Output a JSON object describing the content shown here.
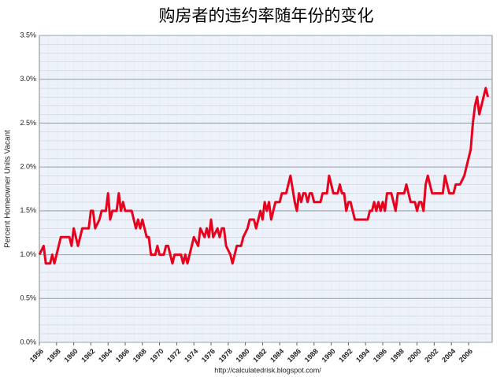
{
  "chart_data": {
    "type": "line",
    "title": "购房者的违约率随年份的变化",
    "y_label": "Percent Homeowner Units Vacant",
    "source": "http://calculatedrisk.blogspot.com/",
    "color": "#e8001c",
    "grid": true,
    "xlim": [
      1956,
      2008.75
    ],
    "xticks": [
      1956,
      1958,
      1960,
      1962,
      1964,
      1966,
      1968,
      1970,
      1972,
      1974,
      1976,
      1978,
      1980,
      1982,
      1984,
      1986,
      1988,
      1990,
      1992,
      1994,
      1996,
      1998,
      2000,
      2002,
      2004,
      2006
    ],
    "ylim": [
      0,
      3.5
    ],
    "yticks": [
      {
        "value": 0,
        "label": "0.0%"
      },
      {
        "value": 0.5,
        "label": "0.5%"
      },
      {
        "value": 1,
        "label": "1.0%"
      },
      {
        "value": 1.5,
        "label": "1.5%"
      },
      {
        "value": 2,
        "label": "2.0%"
      },
      {
        "value": 2.5,
        "label": "2.5%"
      },
      {
        "value": 3,
        "label": "3.0%"
      },
      {
        "value": 3.5,
        "label": "3.5%"
      }
    ],
    "x": [
      1956.0,
      1956.5,
      1956.75,
      1957.25,
      1957.5,
      1957.75,
      1958.25,
      1958.5,
      1959.5,
      1959.75,
      1960.0,
      1960.5,
      1961.0,
      1961.75,
      1962.0,
      1962.25,
      1962.5,
      1963.0,
      1963.25,
      1963.75,
      1964.0,
      1964.25,
      1964.5,
      1965.0,
      1965.25,
      1965.5,
      1965.75,
      1966.0,
      1966.75,
      1967.0,
      1967.25,
      1967.5,
      1967.75,
      1968.0,
      1968.5,
      1968.75,
      1969.0,
      1969.5,
      1969.75,
      1970.0,
      1970.5,
      1970.75,
      1971.0,
      1971.5,
      1971.75,
      1972.5,
      1972.75,
      1973.0,
      1973.25,
      1973.75,
      1974.0,
      1974.5,
      1974.75,
      1975.25,
      1975.5,
      1975.75,
      1976.0,
      1976.25,
      1976.75,
      1977.0,
      1977.25,
      1977.5,
      1977.75,
      1978.25,
      1978.5,
      1978.75,
      1979.0,
      1979.5,
      1979.75,
      1980.25,
      1980.5,
      1981.0,
      1981.25,
      1981.5,
      1981.75,
      1982.0,
      1982.25,
      1982.5,
      1982.75,
      1983.0,
      1983.5,
      1984.0,
      1984.25,
      1984.75,
      1985.25,
      1985.75,
      1986.0,
      1986.25,
      1986.5,
      1986.75,
      1987.0,
      1987.25,
      1987.5,
      1987.75,
      1988.0,
      1988.75,
      1989.0,
      1989.5,
      1989.75,
      1990.25,
      1990.75,
      1991.0,
      1991.25,
      1991.5,
      1991.75,
      1992.0,
      1992.25,
      1992.5,
      1992.75,
      1993.0,
      1994.25,
      1994.5,
      1994.75,
      1995.0,
      1995.25,
      1995.5,
      1995.75,
      1996.0,
      1996.25,
      1996.5,
      1997.0,
      1997.25,
      1997.5,
      1997.75,
      1998.0,
      1998.5,
      1998.75,
      1999.0,
      1999.25,
      1999.75,
      2000.0,
      2000.25,
      2000.5,
      2000.75,
      2001.0,
      2001.25,
      2001.5,
      2001.75,
      2002.0,
      2003.0,
      2003.25,
      2003.5,
      2003.75,
      2004.25,
      2004.5,
      2005.0,
      2005.5,
      2005.75,
      2006.0,
      2006.25,
      2006.5,
      2006.75,
      2007.0,
      2007.25,
      2007.5,
      2007.75,
      2008.0,
      2008.25
    ],
    "values": [
      1.0,
      1.1,
      0.9,
      0.9,
      1.0,
      0.9,
      1.1,
      1.2,
      1.2,
      1.1,
      1.3,
      1.1,
      1.3,
      1.3,
      1.5,
      1.5,
      1.3,
      1.4,
      1.5,
      1.5,
      1.7,
      1.4,
      1.5,
      1.5,
      1.7,
      1.5,
      1.6,
      1.5,
      1.5,
      1.4,
      1.3,
      1.4,
      1.3,
      1.4,
      1.2,
      1.2,
      1.0,
      1.0,
      1.1,
      1.0,
      1.0,
      1.1,
      1.1,
      0.9,
      1.0,
      1.0,
      0.9,
      1.0,
      0.9,
      1.1,
      1.2,
      1.1,
      1.3,
      1.2,
      1.3,
      1.2,
      1.4,
      1.2,
      1.3,
      1.2,
      1.3,
      1.3,
      1.1,
      1.0,
      0.9,
      1.0,
      1.1,
      1.1,
      1.2,
      1.3,
      1.4,
      1.4,
      1.3,
      1.4,
      1.5,
      1.4,
      1.6,
      1.5,
      1.6,
      1.4,
      1.6,
      1.6,
      1.7,
      1.7,
      1.9,
      1.6,
      1.5,
      1.7,
      1.6,
      1.7,
      1.7,
      1.6,
      1.7,
      1.7,
      1.6,
      1.6,
      1.7,
      1.7,
      1.9,
      1.7,
      1.7,
      1.8,
      1.7,
      1.7,
      1.5,
      1.6,
      1.6,
      1.5,
      1.4,
      1.4,
      1.4,
      1.5,
      1.5,
      1.6,
      1.5,
      1.6,
      1.5,
      1.6,
      1.5,
      1.7,
      1.7,
      1.6,
      1.5,
      1.7,
      1.7,
      1.7,
      1.8,
      1.7,
      1.6,
      1.6,
      1.5,
      1.6,
      1.6,
      1.5,
      1.8,
      1.9,
      1.8,
      1.7,
      1.7,
      1.7,
      1.9,
      1.8,
      1.7,
      1.7,
      1.8,
      1.8,
      1.9,
      2.0,
      2.1,
      2.2,
      2.5,
      2.7,
      2.8,
      2.6,
      2.7,
      2.8,
      2.9,
      2.8
    ]
  }
}
